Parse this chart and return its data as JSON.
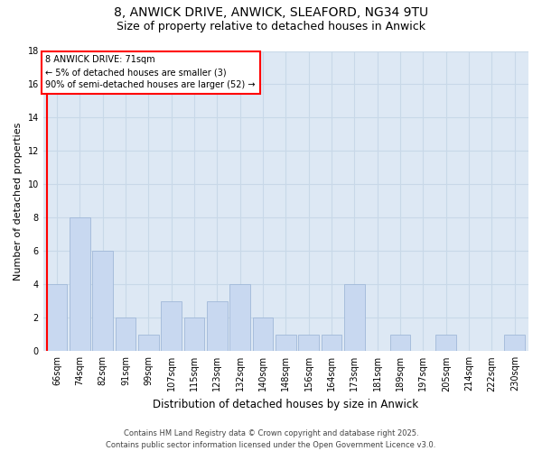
{
  "title1": "8, ANWICK DRIVE, ANWICK, SLEAFORD, NG34 9TU",
  "title2": "Size of property relative to detached houses in Anwick",
  "xlabel": "Distribution of detached houses by size in Anwick",
  "ylabel": "Number of detached properties",
  "categories": [
    "66sqm",
    "74sqm",
    "82sqm",
    "91sqm",
    "99sqm",
    "107sqm",
    "115sqm",
    "123sqm",
    "132sqm",
    "140sqm",
    "148sqm",
    "156sqm",
    "164sqm",
    "173sqm",
    "181sqm",
    "189sqm",
    "197sqm",
    "205sqm",
    "214sqm",
    "222sqm",
    "230sqm"
  ],
  "values": [
    4,
    8,
    6,
    2,
    1,
    3,
    2,
    3,
    4,
    2,
    1,
    1,
    1,
    4,
    0,
    1,
    0,
    1,
    0,
    0,
    1
  ],
  "bar_color": "#c8d8f0",
  "bar_edgecolor": "#a0b8d8",
  "grid_color": "#c8d8e8",
  "background_color": "#dde8f4",
  "annotation_box": {
    "text_line1": "8 ANWICK DRIVE: 71sqm",
    "text_line2": "← 5% of detached houses are smaller (3)",
    "text_line3": "90% of semi-detached houses are larger (52) →",
    "box_color": "white",
    "edge_color": "red",
    "text_fontsize": 7
  },
  "red_line_xindex": 0,
  "ylim": [
    0,
    18
  ],
  "yticks": [
    0,
    2,
    4,
    6,
    8,
    10,
    12,
    14,
    16,
    18
  ],
  "footer1": "Contains HM Land Registry data © Crown copyright and database right 2025.",
  "footer2": "Contains public sector information licensed under the Open Government Licence v3.0.",
  "title1_fontsize": 10,
  "title2_fontsize": 9,
  "xlabel_fontsize": 8.5,
  "ylabel_fontsize": 8,
  "tick_fontsize": 7,
  "footer_fontsize": 6
}
